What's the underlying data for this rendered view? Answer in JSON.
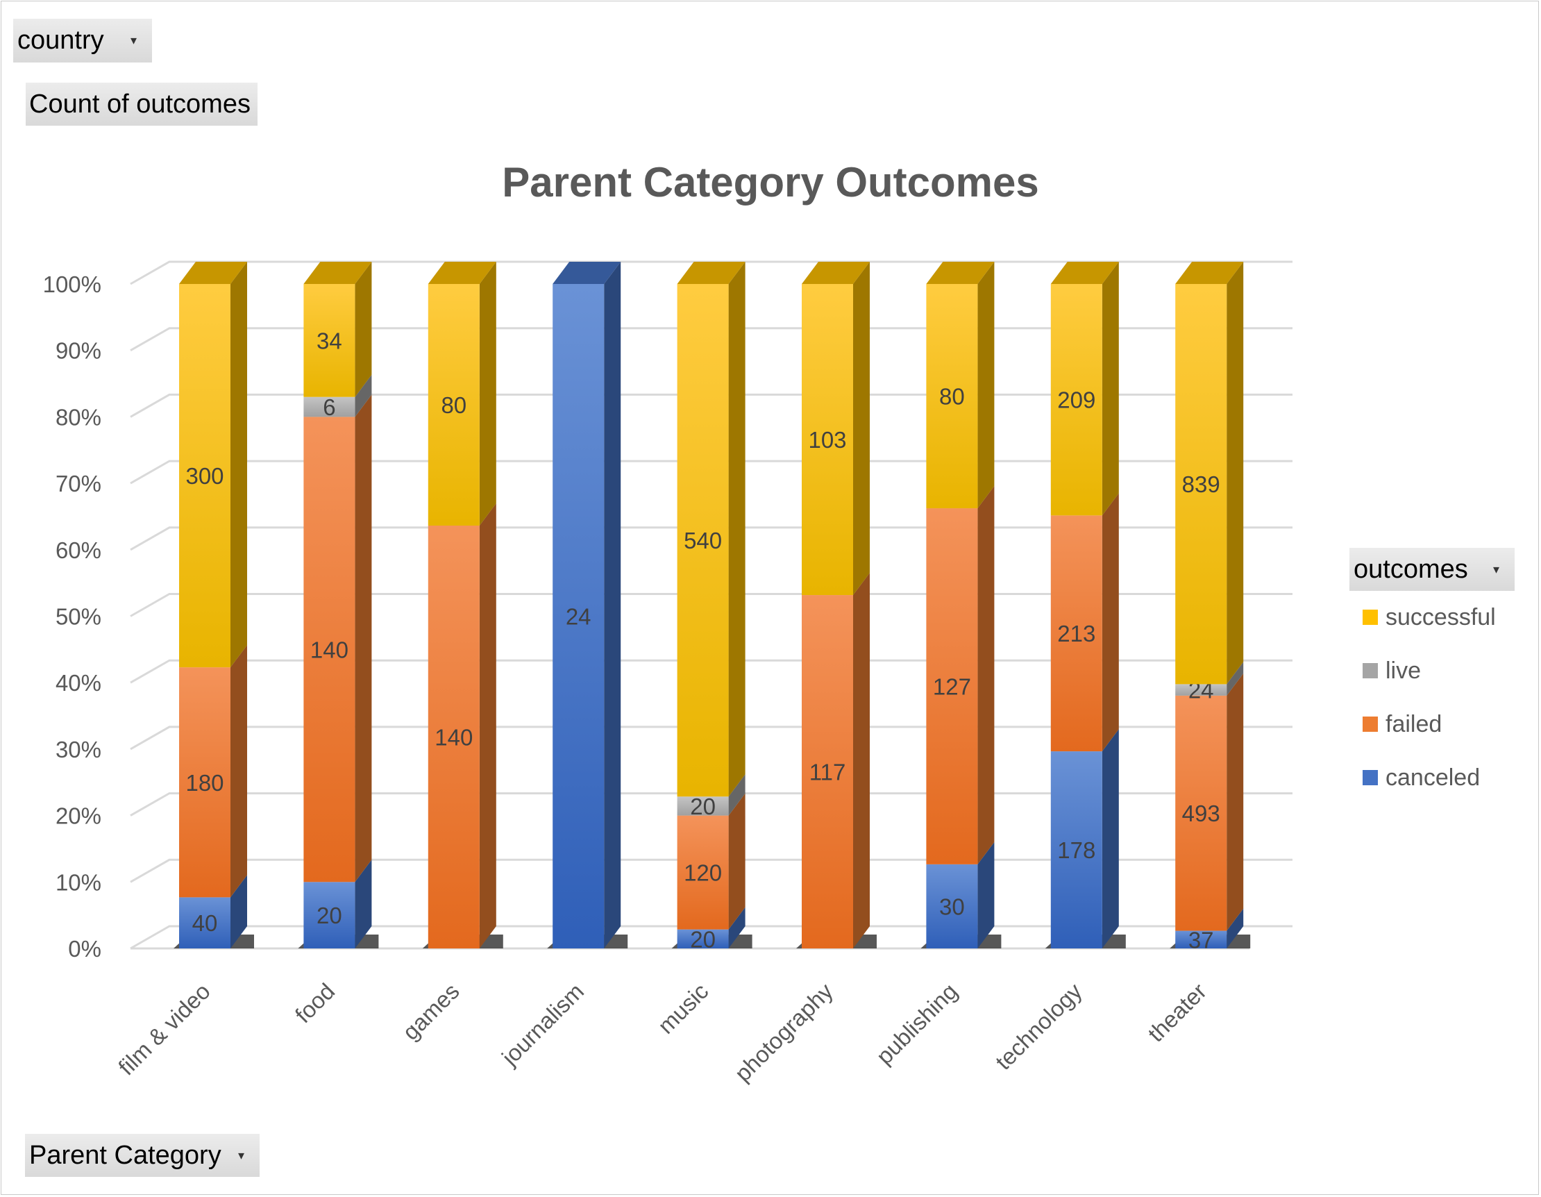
{
  "pivot": {
    "country_label": "country",
    "values_label": "Count of outcomes",
    "axis_label": "Parent Category",
    "legend_label": "outcomes",
    "dropdown_glyph": "▾"
  },
  "chart_data": {
    "type": "bar",
    "stacked": "percent",
    "title": "Parent Category Outcomes",
    "categories": [
      "film & video",
      "food",
      "games",
      "journalism",
      "music",
      "photography",
      "publishing",
      "technology",
      "theater"
    ],
    "series": [
      {
        "name": "canceled",
        "color": "#4472c4",
        "values": [
          40,
          20,
          0,
          24,
          20,
          0,
          30,
          178,
          37
        ]
      },
      {
        "name": "failed",
        "color": "#ed7d31",
        "values": [
          180,
          140,
          140,
          0,
          120,
          117,
          127,
          213,
          493
        ]
      },
      {
        "name": "live",
        "color": "#a5a5a5",
        "values": [
          0,
          6,
          0,
          0,
          20,
          0,
          0,
          0,
          24
        ]
      },
      {
        "name": "successful",
        "color": "#ffc000",
        "values": [
          300,
          34,
          80,
          0,
          540,
          103,
          80,
          209,
          839
        ]
      }
    ],
    "y_ticks": [
      "0%",
      "10%",
      "20%",
      "30%",
      "40%",
      "50%",
      "60%",
      "70%",
      "80%",
      "90%",
      "100%"
    ],
    "ylim": [
      0,
      100
    ],
    "grid": true,
    "legend_position": "right",
    "legend_order": [
      "successful",
      "live",
      "failed",
      "canceled"
    ]
  }
}
